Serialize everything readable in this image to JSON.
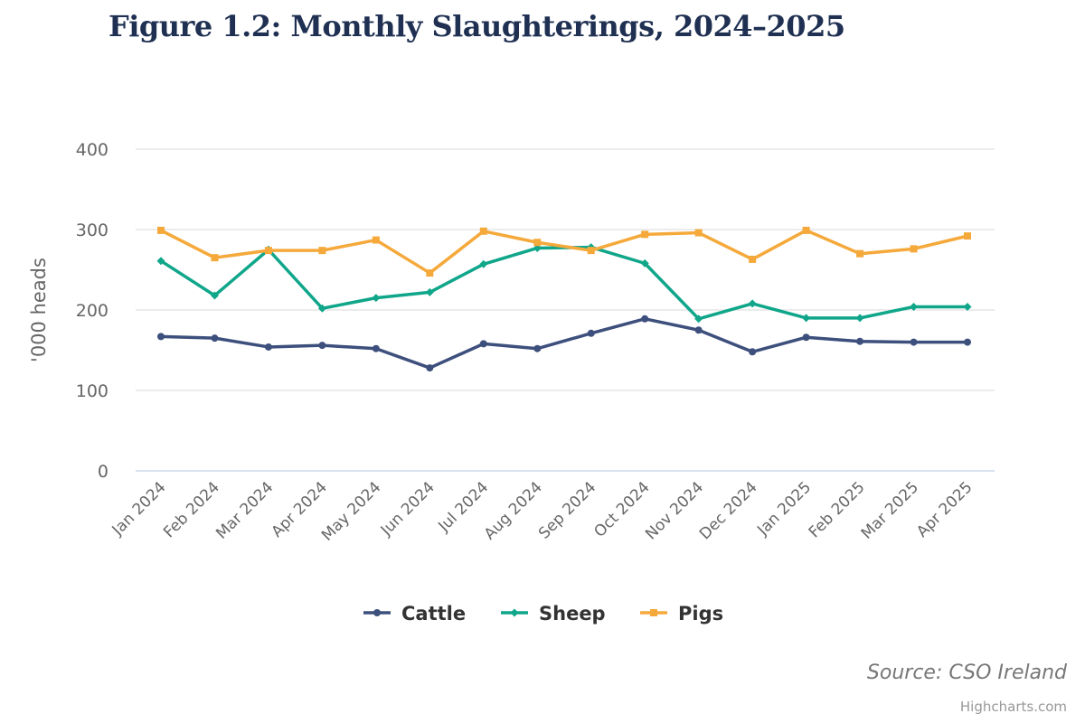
{
  "title": "Figure 1.2: Monthly Slaughterings, 2024–2025",
  "source": "Source: CSO Ireland",
  "credits": "Highcharts.com",
  "chart_data": {
    "type": "line",
    "title": "Figure 1.2: Monthly Slaughterings, 2024–2025",
    "xlabel": "",
    "ylabel": "'000 heads",
    "ylim": [
      0,
      400
    ],
    "yticks": [
      0,
      100,
      200,
      300,
      400
    ],
    "grid": true,
    "legend_position": "bottom-center",
    "categories": [
      "Jan 2024",
      "Feb 2024",
      "Mar 2024",
      "Apr 2024",
      "May 2024",
      "Jun 2024",
      "Jul 2024",
      "Aug 2024",
      "Sep 2024",
      "Oct 2024",
      "Nov 2024",
      "Dec 2024",
      "Jan 2025",
      "Feb 2025",
      "Mar 2025",
      "Apr 2025"
    ],
    "series": [
      {
        "name": "Cattle",
        "color": "#3d4f7c",
        "marker": "circle",
        "values": [
          167,
          165,
          154,
          156,
          152,
          128,
          158,
          152,
          171,
          189,
          175,
          148,
          166,
          161,
          160,
          160
        ]
      },
      {
        "name": "Sheep",
        "color": "#10a68a",
        "marker": "diamond",
        "values": [
          261,
          218,
          275,
          202,
          215,
          222,
          257,
          277,
          278,
          258,
          189,
          208,
          190,
          190,
          204,
          204
        ]
      },
      {
        "name": "Pigs",
        "color": "#f5a93b",
        "marker": "square",
        "values": [
          299,
          265,
          274,
          274,
          287,
          246,
          298,
          284,
          274,
          294,
          296,
          263,
          299,
          270,
          276,
          292
        ]
      }
    ]
  }
}
